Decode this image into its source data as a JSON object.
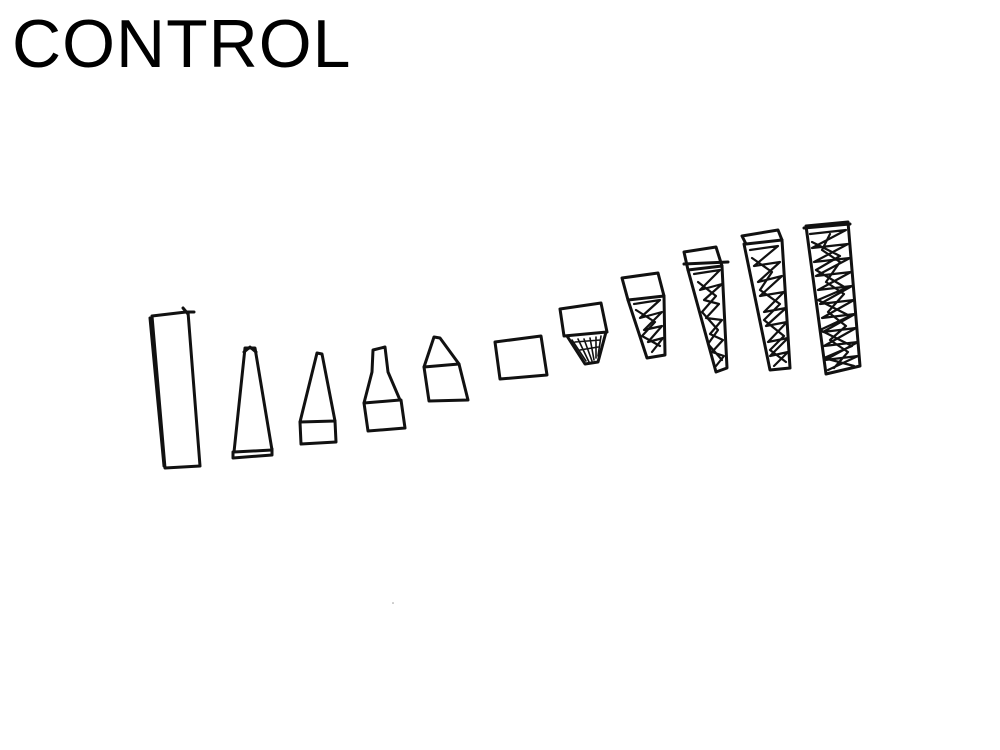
{
  "title": "CONTROL",
  "colors": {
    "background": "#ffffff",
    "ink": "#111111"
  },
  "sequence": {
    "description_type": "hand-drawn progression of 11 shapes",
    "stages": [
      {
        "shape": "tall-rectangle",
        "fill": "none"
      },
      {
        "shape": "tall-triangle-with-base-band",
        "fill": "none"
      },
      {
        "shape": "triangle-on-square",
        "fill": "none"
      },
      {
        "shape": "narrow-peak-on-square",
        "fill": "none"
      },
      {
        "shape": "short-peak-on-square",
        "fill": "none"
      },
      {
        "shape": "square",
        "fill": "none"
      },
      {
        "shape": "square-on-small-inverted-trapezoid",
        "fill": "hatched"
      },
      {
        "shape": "square-on-inverted-trapezoid",
        "fill": "scribbled"
      },
      {
        "shape": "square-on-long-inverted-triangle",
        "fill": "scribbled"
      },
      {
        "shape": "square-on-tall-inverted-trapezoid",
        "fill": "scribbled"
      },
      {
        "shape": "tall-rectangle",
        "fill": "scribbled"
      }
    ]
  }
}
